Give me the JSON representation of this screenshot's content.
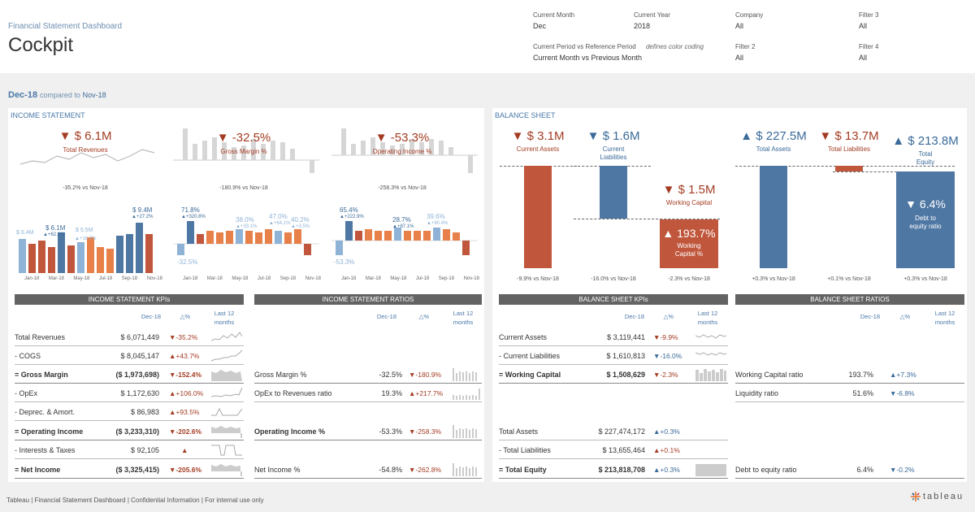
{
  "header": {
    "subtitle": "Financial Statement Dashboard",
    "title": "Cockpit",
    "filters": [
      {
        "label": "Current Month",
        "value": "Dec"
      },
      {
        "label": "Current Year",
        "value": "2018"
      },
      {
        "label": "Company",
        "value": "All"
      },
      {
        "label": "Filter 3",
        "value": "All"
      },
      {
        "label": "Current Period vs Reference Period",
        "note": "defines color coding",
        "value": "Current Month vs Previous Month"
      },
      {
        "label": "Filter 2",
        "value": "All"
      },
      {
        "label": "Filter 4",
        "value": "All"
      }
    ]
  },
  "period": {
    "current": "Dec-18",
    "compared": "compared to",
    "reference": "Nov-18"
  },
  "income": {
    "title": "INCOME STATEMENT",
    "kpis": [
      {
        "value": "▼ $ 6.1M",
        "label": "Total Revenues",
        "vs": "-35.2% vs Nov-18"
      },
      {
        "value": "▼ -32.5%",
        "label": "Gross Margin %",
        "vs": "-180.9% vs Nov-18"
      },
      {
        "value": "▼ -53.3%",
        "label": "Operating Income %",
        "vs": "-258.3% vs Nov-18"
      }
    ],
    "rev_labels": {
      "a": "$ 6.4M",
      "b": "$ 6.1M",
      "b2": "▲+62.1%",
      "c": "$ 5.5M",
      "c2": "▲+16.7%",
      "d": "$ 9.4M",
      "d2": "▲+27.2%"
    },
    "gm_labels": {
      "a": "71.8%",
      "a2": "▲+320.8%",
      "b": "38.0%",
      "b2": "▲+33.1%",
      "c": "47.0%",
      "c2": "▲+64.1%",
      "d": "40.2%",
      "d2": "▲+3.5%",
      "neg": "-32.5%"
    },
    "oi_labels": {
      "a": "65.4%",
      "a2": "▲+222.9%",
      "b": "28.7%",
      "b2": "▲+87.1%",
      "c": "39.6%",
      "c2": "▲+80.4%",
      "neg": "-53.3%"
    },
    "months": [
      "Jan-18",
      "Mar-18",
      "May-18",
      "Jul-18",
      "Sep-18",
      "Nov-18"
    ]
  },
  "balance": {
    "title": "BALANCE SHEET",
    "kpis": [
      {
        "value": "▼ $ 3.1M",
        "label": "Current Assets",
        "vs": "-9.9% vs Nov-18"
      },
      {
        "value": "▼ $ 1.6M",
        "label": "Current Liabilities",
        "vs": "-16.0% vs Nov-18"
      },
      {
        "value": "▼ $ 1.5M",
        "label": "Working Capital",
        "vs": "-2.3% vs Nov-18",
        "inner": "▲ 193.7%",
        "inner_label": "Working Capital %"
      },
      {
        "value": "▲ $ 227.5M",
        "label": "Total Assets",
        "vs": "+0.3% vs Nov-18"
      },
      {
        "value": "▼ $ 13.7M",
        "label": "Total Liabilities",
        "vs": "+0.1% vs Nov-18"
      },
      {
        "value": "▲ $ 213.8M",
        "label": "Total Equity",
        "vs": "+0.3% vs Nov-18",
        "inner": "▼ 6.4%",
        "inner_label": "Debt to equity ratio"
      }
    ]
  },
  "tables": {
    "is_kpis": {
      "title": "INCOME STATEMENT KPIs",
      "col1": "Dec-18",
      "col2": "△%",
      "col3": "Last 12 months",
      "rows": [
        {
          "label": "Total Revenues",
          "value": "$ 6,071,449",
          "delta": "▼-35.2%"
        },
        {
          "label": "- COGS",
          "value": "$ 8,045,147",
          "delta": "▲+43.7%"
        },
        {
          "label": "= Gross Margin",
          "value": "($ 1,973,698)",
          "delta": "▼-152.4%"
        },
        {
          "label": "- OpEx",
          "value": "$ 1,172,630",
          "delta": "▲+106.0%"
        },
        {
          "label": "- Deprec. & Amort.",
          "value": "$ 86,983",
          "delta": "▲+93.5%"
        },
        {
          "label": "= Operating Income",
          "value": "($ 3,233,310)",
          "delta": "▼-202.6%"
        },
        {
          "label": "- Interests & Taxes",
          "value": "$ 92,105",
          "delta": "▲"
        },
        {
          "label": "= Net Income",
          "value": "($ 3,325,415)",
          "delta": "▼-205.6%"
        }
      ]
    },
    "is_ratios": {
      "title": "INCOME STATEMENT RATIOS",
      "col1": "Dec-18",
      "col2": "△%",
      "col3": "Last 12 months",
      "rows": [
        {
          "label": "Gross Margin %",
          "value": "-32.5%",
          "delta": "▼-180.9%"
        },
        {
          "label": "OpEx to Revenues ratio",
          "value": "19.3%",
          "delta": "▲+217.7%"
        },
        {
          "label": "Operating Income %",
          "value": "-53.3%",
          "delta": "▼-258.3%"
        },
        {
          "label": "Net Income %",
          "value": "-54.8%",
          "delta": "▼-262.8%"
        }
      ]
    },
    "bs_kpis": {
      "title": "BALANCE SHEET KPIs",
      "col1": "Dec-18",
      "col2": "△%",
      "col3": "Last 12 months",
      "rows": [
        {
          "label": "Current Assets",
          "value": "$ 3,119,441",
          "delta": "▼-9.9%"
        },
        {
          "label": "- Current Liabilities",
          "value": "$ 1,610,813",
          "delta": "▼-16.0%"
        },
        {
          "label": "= Working Capital",
          "value": "$ 1,508,629",
          "delta": "▼-2.3%"
        },
        {
          "label": "Total Assets",
          "value": "$ 227,474,172",
          "delta": "▲+0.3%"
        },
        {
          "label": "- Total Liabilities",
          "value": "$ 13,655,464",
          "delta": "▲+0.1%"
        },
        {
          "label": "= Total Equity",
          "value": "$ 213,818,708",
          "delta": "▲+0.3%"
        }
      ]
    },
    "bs_ratios": {
      "title": "BALANCE SHEET RATIOS",
      "col1": "Dec-18",
      "col2": "△%",
      "col3": "Last 12 months",
      "rows": [
        {
          "label": "Working Capital ratio",
          "value": "193.7%",
          "delta": "▲+7.3%"
        },
        {
          "label": "Liquidity ratio",
          "value": "51.6%",
          "delta": "▼-6.8%"
        },
        {
          "label": "Debt to equity ratio",
          "value": "6.4%",
          "delta": "▼-0.2%"
        }
      ]
    }
  },
  "footer": {
    "text": "Tableau | Financial Statement Dashboard | Confidential Information | For internal use only",
    "logo": "tableau"
  },
  "colors": {
    "red": "#a33c23",
    "blue": "#3a6a99",
    "orange": "#e8804a",
    "bar_red": "#c0573d",
    "bar_blue": "#4f77a3",
    "light_blue": "#8fb3d6"
  }
}
